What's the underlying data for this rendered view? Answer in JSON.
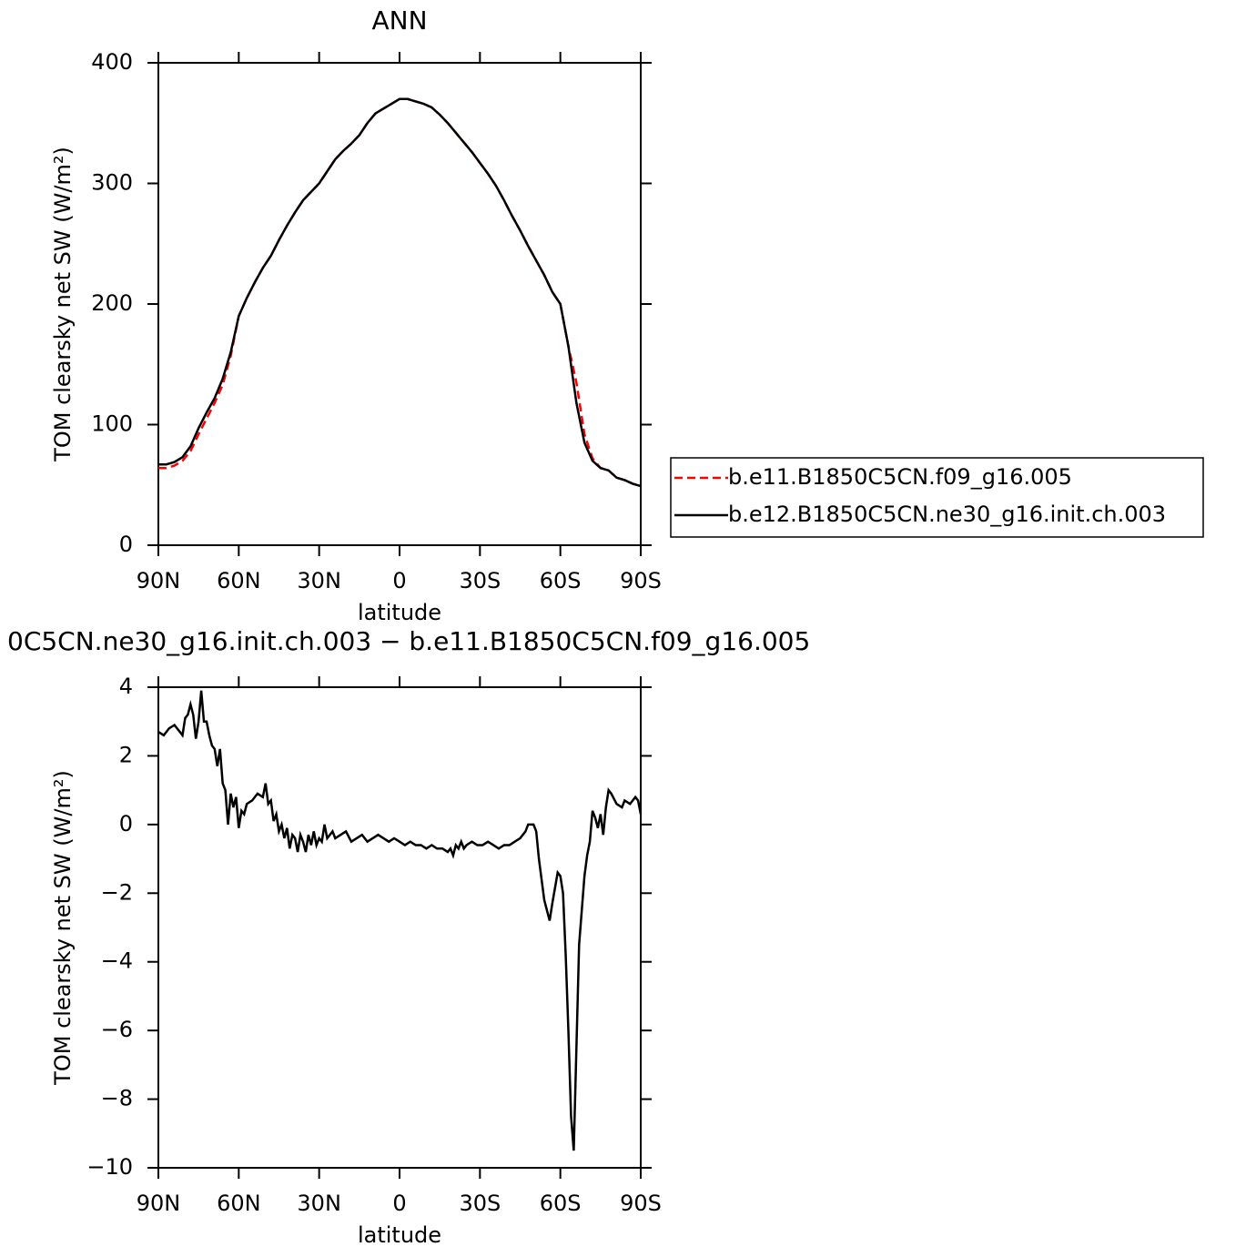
{
  "chart_data": [
    {
      "type": "line",
      "title": "ANN",
      "x_label": "latitude",
      "y_label": "TOM clearsky net SW (W/m²)",
      "x": [
        90,
        87,
        84,
        81,
        78,
        75,
        72,
        69,
        66,
        63,
        60,
        57,
        54,
        51,
        48,
        45,
        42,
        39,
        36,
        33,
        30,
        27,
        24,
        21,
        18,
        15,
        12,
        9,
        6,
        3,
        0,
        -3,
        -6,
        -9,
        -12,
        -15,
        -18,
        -21,
        -24,
        -27,
        -30,
        -33,
        -36,
        -39,
        -42,
        -45,
        -48,
        -51,
        -54,
        -57,
        -60,
        -63,
        -66,
        -69,
        -72,
        -75,
        -78,
        -81,
        -84,
        -87,
        -90
      ],
      "series": [
        {
          "name": "b.e11.B1850C5CN.f09_g16.005",
          "color": "#ff0000",
          "dashed": true,
          "values": [
            64,
            64,
            66,
            70,
            78,
            92,
            105,
            118,
            133,
            157,
            190,
            205,
            218,
            230,
            240,
            253,
            265,
            276,
            286,
            293,
            300,
            310,
            320,
            327,
            333,
            340,
            350,
            358,
            362,
            366,
            370,
            370,
            368,
            366,
            363,
            357,
            350,
            342,
            334,
            326,
            317,
            308,
            298,
            286,
            273,
            261,
            248,
            236,
            224,
            210,
            200,
            165,
            135,
            92,
            72,
            64,
            62,
            56,
            54,
            51,
            49
          ]
        },
        {
          "name": "b.e12.B1850C5CN.ne30_g16.init.ch.003",
          "color": "#000000",
          "dashed": false,
          "values": [
            67,
            67,
            69,
            73,
            82,
            97,
            110,
            122,
            138,
            160,
            190,
            205,
            218,
            230,
            240,
            253,
            265,
            276,
            286,
            293,
            300,
            310,
            320,
            327,
            333,
            340,
            350,
            358,
            362,
            366,
            370,
            370,
            368,
            366,
            363,
            357,
            350,
            342,
            334,
            326,
            317,
            308,
            298,
            286,
            273,
            261,
            248,
            236,
            224,
            210,
            200,
            165,
            118,
            85,
            70,
            64,
            62,
            56,
            54,
            51,
            49
          ]
        }
      ],
      "xlim": [
        90,
        -90
      ],
      "xticks": [
        {
          "value": 90,
          "label": "90N"
        },
        {
          "value": 60,
          "label": "60N"
        },
        {
          "value": 30,
          "label": "30N"
        },
        0,
        {
          "value": -30,
          "label": "30S"
        },
        {
          "value": -60,
          "label": "60S"
        },
        {
          "value": -90,
          "label": "90S"
        }
      ],
      "ylim": [
        0,
        400
      ],
      "yticks": [
        0,
        100,
        200,
        300,
        400
      ],
      "legend": "outside-right"
    },
    {
      "type": "line",
      "title": "0C5CN.ne30_g16.init.ch.003 − b.e11.B1850C5CN.f09_g16.005",
      "x_label": "latitude",
      "y_label": "TOM clearsky net SW (W/m²)",
      "x": [
        90,
        88,
        86,
        84,
        82,
        81,
        80,
        79,
        78,
        77,
        76,
        75,
        74,
        73,
        72,
        71,
        70,
        69,
        68,
        67,
        66,
        65,
        64,
        63,
        62,
        61,
        60,
        59,
        58,
        57,
        55,
        53,
        51,
        50,
        49,
        48,
        47,
        46,
        45,
        44,
        43,
        42,
        41,
        40,
        39,
        38,
        37,
        36,
        35,
        34,
        33,
        32,
        31,
        30,
        29,
        28,
        27,
        26,
        25,
        24,
        22,
        20,
        18,
        16,
        14,
        12,
        10,
        8,
        6,
        4,
        2,
        0,
        -2,
        -4,
        -6,
        -8,
        -10,
        -12,
        -14,
        -16,
        -18,
        -19,
        -20,
        -21,
        -22,
        -23,
        -24,
        -25,
        -27,
        -29,
        -31,
        -33,
        -35,
        -37,
        -39,
        -41,
        -43,
        -45,
        -47,
        -48,
        -50,
        -51,
        -52,
        -54,
        -56,
        -57,
        -59,
        -60,
        -61,
        -62,
        -63,
        -64,
        -65,
        -66,
        -67,
        -69,
        -70,
        -71,
        -72,
        -73,
        -74,
        -75,
        -76,
        -77,
        -78,
        -79,
        -81,
        -83,
        -84,
        -86,
        -88,
        -89,
        -90
      ],
      "series": [
        {
          "color": "#000000",
          "dashed": false,
          "values": [
            2.7,
            2.6,
            2.8,
            2.9,
            2.7,
            2.6,
            3.1,
            3.2,
            3.5,
            3.2,
            2.5,
            3.0,
            3.9,
            3.0,
            3.0,
            2.6,
            2.3,
            2.2,
            1.7,
            2.2,
            1.2,
            1.0,
            0,
            0.9,
            0.5,
            0.8,
            -0.1,
            0.4,
            0.3,
            0.6,
            0.7,
            0.9,
            0.8,
            1.2,
            0.6,
            0.7,
            0.1,
            0.3,
            -0.2,
            0,
            -0.4,
            -0.1,
            -0.7,
            -0.3,
            -0.4,
            -0.8,
            -0.3,
            -0.5,
            -0.8,
            -0.3,
            -0.6,
            -0.2,
            -0.6,
            -0.4,
            -0.5,
            0,
            -0.4,
            -0.3,
            -0.2,
            -0.4,
            -0.3,
            -0.2,
            -0.5,
            -0.4,
            -0.3,
            -0.5,
            -0.4,
            -0.3,
            -0.4,
            -0.5,
            -0.4,
            -0.5,
            -0.6,
            -0.5,
            -0.6,
            -0.6,
            -0.7,
            -0.6,
            -0.7,
            -0.7,
            -0.8,
            -0.7,
            -0.9,
            -0.6,
            -0.7,
            -0.5,
            -0.7,
            -0.6,
            -0.5,
            -0.6,
            -0.6,
            -0.5,
            -0.6,
            -0.7,
            -0.6,
            -0.6,
            -0.5,
            -0.4,
            -0.2,
            0,
            0,
            -0.2,
            -1.0,
            -2.2,
            -2.8,
            -2.3,
            -1.4,
            -1.5,
            -2.0,
            -3.8,
            -6.0,
            -8.5,
            -9.5,
            -6.5,
            -3.5,
            -1.5,
            -0.9,
            -0.5,
            0.4,
            0.2,
            -0.1,
            0.3,
            -0.3,
            0.5,
            1.0,
            0.9,
            0.6,
            0.5,
            0.7,
            0.6,
            0.8,
            0.7,
            0.3
          ]
        }
      ],
      "xlim": [
        90,
        -90
      ],
      "xticks": [
        {
          "value": 90,
          "label": "90N"
        },
        {
          "value": 60,
          "label": "60N"
        },
        {
          "value": 30,
          "label": "30N"
        },
        0,
        {
          "value": -30,
          "label": "30S"
        },
        {
          "value": -60,
          "label": "60S"
        },
        {
          "value": -90,
          "label": "90S"
        }
      ],
      "ylim": [
        -10,
        4
      ],
      "yticks": [
        {
          "value": -10,
          "label": "−10"
        },
        {
          "value": -8,
          "label": "−8"
        },
        {
          "value": -6,
          "label": "−6"
        },
        {
          "value": -4,
          "label": "−4"
        },
        {
          "value": -2,
          "label": "−2"
        },
        0,
        2,
        4
      ]
    }
  ]
}
